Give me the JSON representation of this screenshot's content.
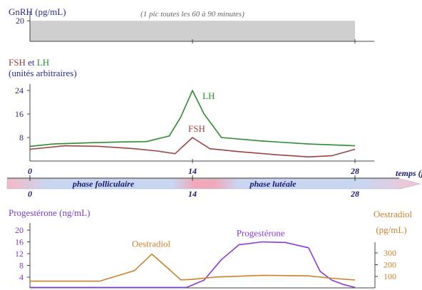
{
  "chart_data": [
    {
      "type": "area",
      "title": "GnRH (pg/mL)",
      "annotation": "(1 pic toutes les 60 à 90 minutes)",
      "yticks": [
        20
      ],
      "ylim": [
        0,
        25
      ],
      "x": [
        0,
        28
      ],
      "values": [
        20,
        20
      ],
      "colors": {
        "fill": "#cfcfcf",
        "axis": "#444444",
        "title": "#2a2a8a"
      }
    },
    {
      "type": "line",
      "title_parts": [
        {
          "text": "FSH",
          "color": "#9a3a3a"
        },
        {
          "text": " et ",
          "color": "#2a2a8a"
        },
        {
          "text": "LH",
          "color": "#2e8b2e"
        }
      ],
      "subtitle": "(unités arbitraires)",
      "yticks": [
        8,
        16,
        24
      ],
      "ylim": [
        0,
        28
      ],
      "xlim": [
        -2,
        30
      ],
      "series": [
        {
          "name": "LH",
          "color": "#2e8b2e",
          "x": [
            0,
            2,
            5,
            8,
            10,
            12,
            13,
            14,
            15,
            16.5,
            20,
            24,
            28
          ],
          "y": [
            5,
            5.8,
            6.2,
            6.5,
            6.6,
            8.5,
            15,
            24,
            16,
            8,
            6.8,
            5.8,
            5.2
          ]
        },
        {
          "name": "FSH",
          "color": "#9a4444",
          "x": [
            0,
            3,
            6,
            9,
            11,
            12.5,
            14,
            15.5,
            18,
            21,
            24,
            26,
            28
          ],
          "y": [
            4,
            5.2,
            5,
            4.2,
            3.4,
            2.5,
            8,
            4.2,
            3.2,
            2.2,
            1.4,
            1.8,
            4
          ]
        }
      ],
      "colors": {
        "axis": "#444444"
      }
    },
    {
      "type": "line",
      "title": "Progestérone (ng/mL)",
      "right_title_line1": "Oestradiol",
      "right_title_line2": "(pg/mL)",
      "yticks_left": [
        4,
        8,
        12,
        16,
        20
      ],
      "ylim_left": [
        0,
        22
      ],
      "yticks_right": [
        100,
        200,
        300
      ],
      "ylim_right": [
        0,
        400
      ],
      "series": [
        {
          "name": "Progestérone",
          "color": "#8a3acf",
          "axis": "left",
          "x": [
            0,
            6,
            10,
            12,
            13.5,
            15,
            16.5,
            18,
            20,
            22,
            24,
            25,
            26,
            27,
            28
          ],
          "y": [
            0.5,
            0.5,
            0.5,
            0.5,
            0.5,
            3,
            10,
            15,
            16,
            15.8,
            14,
            6,
            3,
            1.5,
            0.5
          ]
        },
        {
          "name": "Oestradiol",
          "color": "#c9822e",
          "axis": "right",
          "x": [
            0,
            6,
            9,
            10.5,
            12,
            13,
            14,
            16,
            20,
            24,
            26,
            28
          ],
          "y": [
            60,
            60,
            150,
            290,
            160,
            70,
            75,
            95,
            110,
            105,
            85,
            70
          ]
        }
      ],
      "colors": {
        "axis": "#444444",
        "left_title": "#7a3abf",
        "right_title": "#c9822e"
      }
    }
  ],
  "time_axis": {
    "label": "temps (j",
    "ticks": [
      0,
      14,
      28
    ],
    "phase_follicular": "phase folliculaire",
    "phase_luteal": "phase lutéale",
    "colors": {
      "pink": "#f0a8b8",
      "blue": "#b8cff0",
      "text": "#1a1a6a"
    }
  }
}
